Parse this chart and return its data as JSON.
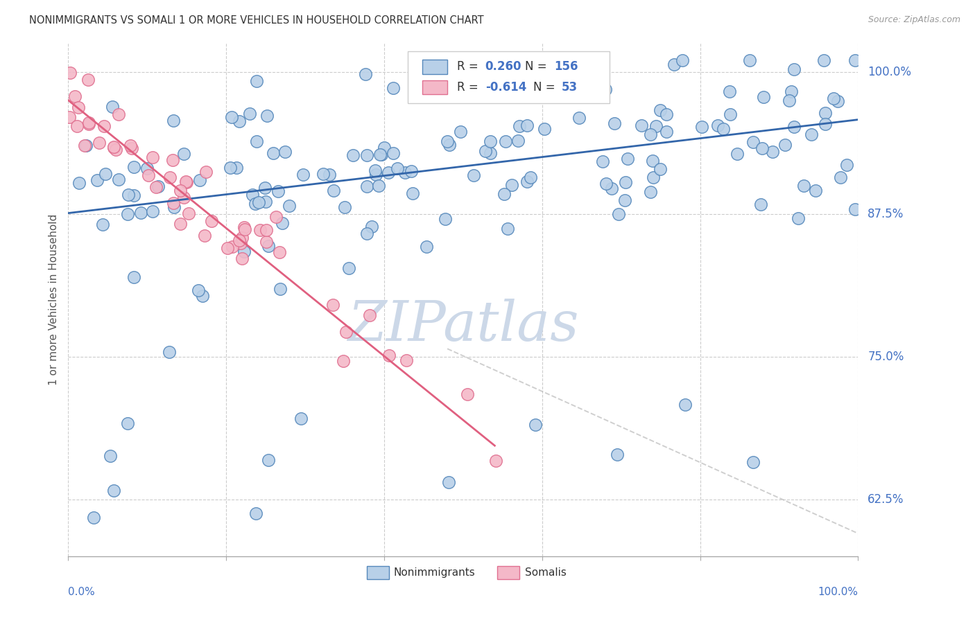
{
  "title": "NONIMMIGRANTS VS SOMALI 1 OR MORE VEHICLES IN HOUSEHOLD CORRELATION CHART",
  "source": "Source: ZipAtlas.com",
  "ylabel": "1 or more Vehicles in Household",
  "ytick_labels": [
    "100.0%",
    "87.5%",
    "75.0%",
    "62.5%"
  ],
  "ytick_values": [
    1.0,
    0.875,
    0.75,
    0.625
  ],
  "xmin": 0.0,
  "xmax": 1.0,
  "ymin": 0.575,
  "ymax": 1.025,
  "blue_color": "#b8d0e8",
  "blue_edge_color": "#5588bb",
  "pink_color": "#f4b8c8",
  "pink_edge_color": "#e07090",
  "blue_line_color": "#3366aa",
  "pink_line_color": "#e06080",
  "diag_color": "#bbbbbb",
  "title_color": "#333333",
  "axis_label_color": "#4472c4",
  "watermark_color": "#ccd8e8",
  "background_color": "#ffffff",
  "blue_line_x0": 0.0,
  "blue_line_x1": 1.0,
  "blue_line_y0": 0.876,
  "blue_line_y1": 0.958,
  "pink_line_x0": 0.0,
  "pink_line_x1": 0.54,
  "pink_line_y0": 0.975,
  "pink_line_y1": 0.672,
  "diag_line_x0": 0.48,
  "diag_line_x1": 1.0,
  "diag_line_y0": 0.757,
  "diag_line_y1": 0.595
}
